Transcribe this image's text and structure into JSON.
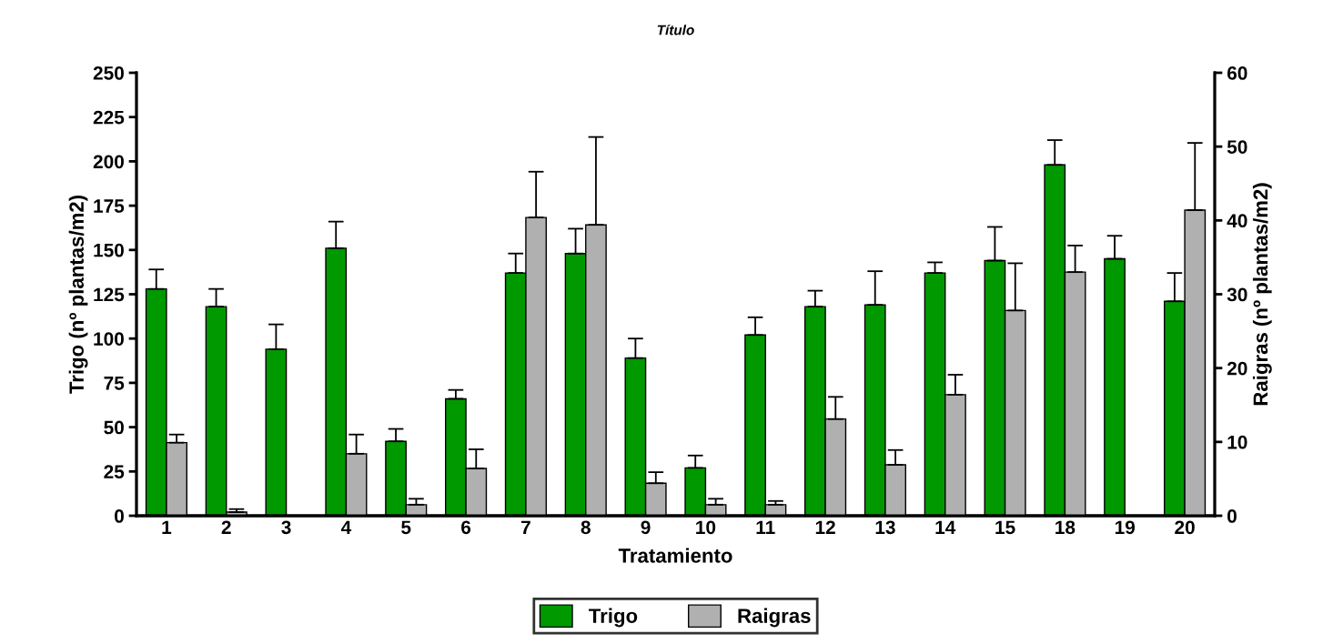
{
  "chart_data": {
    "type": "bar",
    "title": "Título",
    "xlabel": "Tratamiento",
    "ylabel": "Trigo (nº plantas/m2)",
    "y2label": "Raigras (nº plantas/m2)",
    "categories": [
      "1",
      "2",
      "3",
      "4",
      "5",
      "6",
      "7",
      "8",
      "9",
      "10",
      "11",
      "12",
      "13",
      "14",
      "15",
      "18",
      "19",
      "20"
    ],
    "series": [
      {
        "name": "Trigo",
        "color": "#009900",
        "axis": "y",
        "values": [
          128,
          118,
          94,
          151,
          42,
          66,
          137,
          148,
          89,
          27,
          102,
          118,
          119,
          137,
          144,
          198,
          145,
          121
        ],
        "errors": [
          [
            128,
            139
          ],
          [
            118,
            128
          ],
          [
            94,
            108
          ],
          [
            151,
            166
          ],
          [
            42,
            49
          ],
          [
            66,
            71
          ],
          [
            137,
            148
          ],
          [
            148,
            162
          ],
          [
            89,
            100
          ],
          [
            27,
            34
          ],
          [
            102,
            112
          ],
          [
            118,
            127
          ],
          [
            119,
            138
          ],
          [
            137,
            143
          ],
          [
            144,
            163
          ],
          [
            198,
            212
          ],
          [
            145,
            158
          ],
          [
            121,
            137
          ]
        ]
      },
      {
        "name": "Raigras",
        "color": "#b0b0b0",
        "axis": "y2",
        "values": [
          9.9,
          0.5,
          null,
          8.4,
          1.5,
          6.4,
          40.4,
          39.4,
          4.4,
          1.5,
          1.5,
          13.1,
          6.9,
          16.4,
          27.8,
          33,
          null,
          41.4
        ],
        "errors": [
          [
            9.9,
            11
          ],
          [
            0.5,
            0.9
          ],
          null,
          [
            8.4,
            11
          ],
          [
            1.5,
            2.3
          ],
          [
            6.4,
            9
          ],
          [
            40.4,
            46.6
          ],
          [
            39.4,
            51.3
          ],
          [
            4.4,
            5.9
          ],
          [
            1.5,
            2.3
          ],
          [
            1.5,
            2
          ],
          [
            13.1,
            16.1
          ],
          [
            6.9,
            8.9
          ],
          [
            16.4,
            19.1
          ],
          [
            27.8,
            34.2
          ],
          [
            33,
            36.6
          ],
          null,
          [
            41.4,
            50.5
          ]
        ]
      }
    ],
    "ylim": [
      0,
      250
    ],
    "yticks": [
      0,
      25,
      50,
      75,
      100,
      125,
      150,
      175,
      200,
      225,
      250
    ],
    "y2lim": [
      0,
      60
    ],
    "y2ticks": [
      0,
      10,
      20,
      30,
      40,
      50,
      60
    ],
    "grid": false,
    "legend": "bottom"
  }
}
